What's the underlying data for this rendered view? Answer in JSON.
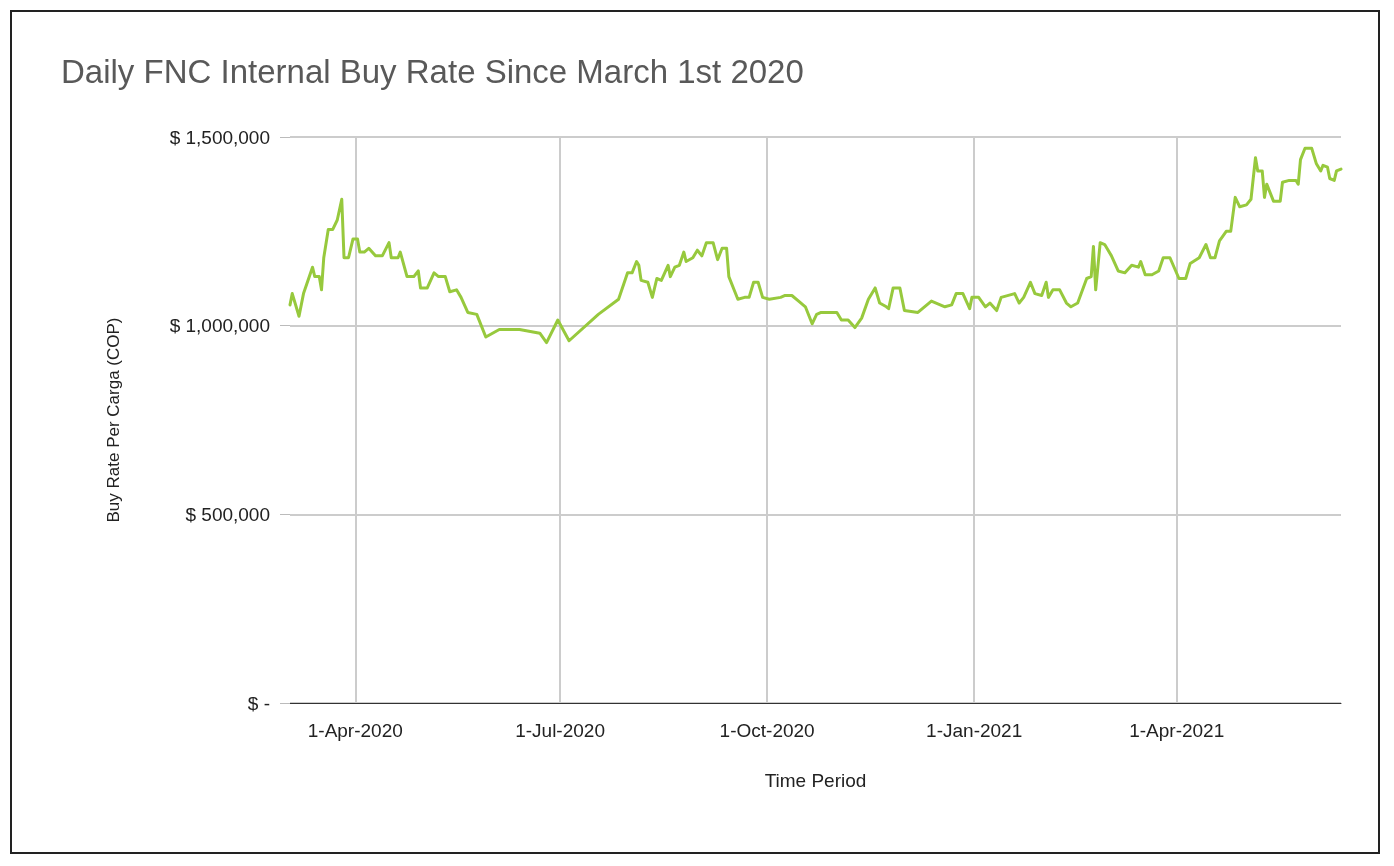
{
  "chart_data": {
    "type": "line",
    "title": "Daily FNC Internal Buy Rate Since March 1st 2020",
    "xlabel": "Time Period",
    "ylabel": "Buy Rate Per Carga (COP)",
    "grid": true,
    "marker": "none",
    "line_style": "solid",
    "xlim": [
      "2020-03-03",
      "2021-06-13"
    ],
    "xticks": [
      {
        "value": "2020-04-01",
        "label": "1-Apr-2020"
      },
      {
        "value": "2020-07-01",
        "label": "1-Jul-2020"
      },
      {
        "value": "2020-10-01",
        "label": "1-Oct-2020"
      },
      {
        "value": "2021-01-01",
        "label": "1-Jan-2021"
      },
      {
        "value": "2021-04-01",
        "label": "1-Apr-2021"
      }
    ],
    "ylim": [
      0,
      1500000
    ],
    "yticks": [
      {
        "value": 0,
        "label": "$ -"
      },
      {
        "value": 500000,
        "label": "$ 500,000"
      },
      {
        "value": 1000000,
        "label": "$ 1,000,000"
      },
      {
        "value": 1500000,
        "label": "$ 1,500,000"
      }
    ],
    "x": [
      "2020-03-03",
      "2020-03-04",
      "2020-03-07",
      "2020-03-09",
      "2020-03-13",
      "2020-03-14",
      "2020-03-16",
      "2020-03-17",
      "2020-03-18",
      "2020-03-20",
      "2020-03-22",
      "2020-03-24",
      "2020-03-26",
      "2020-03-27",
      "2020-03-29",
      "2020-03-31",
      "2020-04-02",
      "2020-04-03",
      "2020-04-05",
      "2020-04-07",
      "2020-04-10",
      "2020-04-13",
      "2020-04-16",
      "2020-04-17",
      "2020-04-20",
      "2020-04-21",
      "2020-04-24",
      "2020-04-27",
      "2020-04-29",
      "2020-04-30",
      "2020-05-03",
      "2020-05-06",
      "2020-05-08",
      "2020-05-11",
      "2020-05-13",
      "2020-05-16",
      "2020-05-18",
      "2020-05-21",
      "2020-05-25",
      "2020-05-29",
      "2020-06-04",
      "2020-06-13",
      "2020-06-22",
      "2020-06-25",
      "2020-06-30",
      "2020-07-05",
      "2020-07-18",
      "2020-07-27",
      "2020-07-31",
      "2020-08-02",
      "2020-08-04",
      "2020-08-05",
      "2020-08-06",
      "2020-08-09",
      "2020-08-11",
      "2020-08-13",
      "2020-08-15",
      "2020-08-18",
      "2020-08-19",
      "2020-08-21",
      "2020-08-23",
      "2020-08-25",
      "2020-08-26",
      "2020-08-29",
      "2020-08-31",
      "2020-09-02",
      "2020-09-04",
      "2020-09-07",
      "2020-09-09",
      "2020-09-11",
      "2020-09-13",
      "2020-09-14",
      "2020-09-16",
      "2020-09-18",
      "2020-09-21",
      "2020-09-23",
      "2020-09-25",
      "2020-09-27",
      "2020-09-29",
      "2020-10-02",
      "2020-10-07",
      "2020-10-09",
      "2020-10-12",
      "2020-10-15",
      "2020-10-18",
      "2020-10-21",
      "2020-10-23",
      "2020-10-25",
      "2020-11-01",
      "2020-11-03",
      "2020-11-06",
      "2020-11-09",
      "2020-11-12",
      "2020-11-15",
      "2020-11-18",
      "2020-11-20",
      "2020-11-23",
      "2020-11-24",
      "2020-11-26",
      "2020-11-29",
      "2020-12-01",
      "2020-12-07",
      "2020-12-13",
      "2020-12-19",
      "2020-12-22",
      "2020-12-24",
      "2020-12-27",
      "2020-12-30",
      "2020-12-31",
      "2021-01-03",
      "2021-01-06",
      "2021-01-08",
      "2021-01-11",
      "2021-01-13",
      "2021-01-19",
      "2021-01-21",
      "2021-01-23",
      "2021-01-26",
      "2021-01-28",
      "2021-01-31",
      "2021-02-02",
      "2021-02-03",
      "2021-02-05",
      "2021-02-08",
      "2021-02-11",
      "2021-02-13",
      "2021-02-16",
      "2021-02-20",
      "2021-02-22",
      "2021-02-23",
      "2021-02-24",
      "2021-02-26",
      "2021-02-28",
      "2021-03-03",
      "2021-03-06",
      "2021-03-09",
      "2021-03-12",
      "2021-03-15",
      "2021-03-16",
      "2021-03-18",
      "2021-03-21",
      "2021-03-24",
      "2021-03-26",
      "2021-03-29",
      "2021-04-02",
      "2021-04-05",
      "2021-04-07",
      "2021-04-11",
      "2021-04-14",
      "2021-04-16",
      "2021-04-18",
      "2021-04-20",
      "2021-04-23",
      "2021-04-25",
      "2021-04-27",
      "2021-04-29",
      "2021-05-02",
      "2021-05-04",
      "2021-05-06",
      "2021-05-07",
      "2021-05-09",
      "2021-05-10",
      "2021-05-11",
      "2021-05-14",
      "2021-05-17",
      "2021-05-18",
      "2021-05-21",
      "2021-05-24",
      "2021-05-25",
      "2021-05-26",
      "2021-05-28",
      "2021-05-31",
      "2021-06-02",
      "2021-06-04",
      "2021-06-05",
      "2021-06-07",
      "2021-06-08",
      "2021-06-10",
      "2021-06-11",
      "2021-06-13"
    ],
    "series": [
      {
        "color": "#97c93d",
        "values": [
          1055000,
          1085000,
          1025000,
          1085000,
          1155000,
          1130000,
          1130000,
          1095000,
          1180000,
          1255000,
          1255000,
          1280000,
          1335000,
          1180000,
          1180000,
          1230000,
          1230000,
          1195000,
          1195000,
          1205000,
          1185000,
          1185000,
          1220000,
          1180000,
          1180000,
          1195000,
          1130000,
          1130000,
          1145000,
          1100000,
          1100000,
          1140000,
          1130000,
          1130000,
          1090000,
          1095000,
          1075000,
          1035000,
          1030000,
          970000,
          990000,
          990000,
          980000,
          955000,
          1015000,
          960000,
          1030000,
          1070000,
          1140000,
          1140000,
          1170000,
          1160000,
          1120000,
          1115000,
          1075000,
          1125000,
          1120000,
          1160000,
          1130000,
          1155000,
          1160000,
          1195000,
          1170000,
          1180000,
          1200000,
          1185000,
          1220000,
          1220000,
          1175000,
          1205000,
          1205000,
          1130000,
          1100000,
          1070000,
          1075000,
          1075000,
          1115000,
          1115000,
          1075000,
          1070000,
          1075000,
          1080000,
          1080000,
          1065000,
          1050000,
          1005000,
          1030000,
          1035000,
          1035000,
          1015000,
          1015000,
          995000,
          1020000,
          1070000,
          1100000,
          1060000,
          1050000,
          1045000,
          1100000,
          1100000,
          1040000,
          1035000,
          1065000,
          1050000,
          1055000,
          1085000,
          1085000,
          1045000,
          1075000,
          1075000,
          1050000,
          1060000,
          1040000,
          1075000,
          1085000,
          1060000,
          1075000,
          1115000,
          1085000,
          1080000,
          1115000,
          1075000,
          1095000,
          1095000,
          1060000,
          1050000,
          1060000,
          1125000,
          1130000,
          1210000,
          1095000,
          1220000,
          1215000,
          1185000,
          1145000,
          1140000,
          1160000,
          1155000,
          1170000,
          1135000,
          1135000,
          1145000,
          1180000,
          1180000,
          1125000,
          1125000,
          1165000,
          1180000,
          1215000,
          1180000,
          1180000,
          1225000,
          1250000,
          1250000,
          1340000,
          1315000,
          1320000,
          1335000,
          1445000,
          1410000,
          1410000,
          1340000,
          1375000,
          1330000,
          1330000,
          1380000,
          1385000,
          1385000,
          1375000,
          1440000,
          1470000,
          1470000,
          1430000,
          1410000,
          1425000,
          1420000,
          1390000,
          1385000,
          1410000,
          1415000
        ]
      }
    ]
  }
}
